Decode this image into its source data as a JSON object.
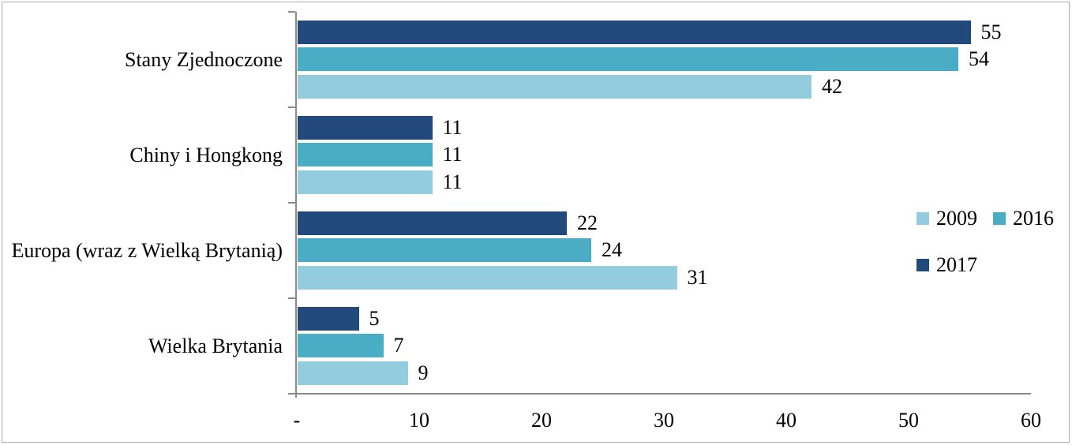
{
  "chart_data": {
    "type": "bar",
    "orientation": "horizontal",
    "title": "",
    "categories": [
      "Stany Zjednoczone",
      "Chiny i Hongkong",
      "Europa (wraz z Wielką Brytanią)",
      "Wielka Brytania"
    ],
    "series": [
      {
        "name": "2017",
        "color": "#21497B",
        "values": [
          55,
          11,
          22,
          5
        ]
      },
      {
        "name": "2016",
        "color": "#4BACC6",
        "values": [
          54,
          11,
          24,
          7
        ]
      },
      {
        "name": "2009",
        "color": "#93CDDD",
        "values": [
          42,
          11,
          31,
          9
        ]
      }
    ],
    "series_render_order": "top-to-bottom within each category group: 2017, 2016, 2009",
    "xlim": [
      0,
      60
    ],
    "x_ticks": [
      {
        "value": 0,
        "label": "-"
      },
      {
        "value": 10,
        "label": "10"
      },
      {
        "value": 20,
        "label": "20"
      },
      {
        "value": 30,
        "label": "30"
      },
      {
        "value": 40,
        "label": "40"
      },
      {
        "value": 50,
        "label": "50"
      },
      {
        "value": 60,
        "label": "60"
      }
    ],
    "data_labels": true,
    "grid": false,
    "legend_items": [
      {
        "label": "2009",
        "color": "#93CDDD"
      },
      {
        "label": "2016",
        "color": "#4BACC6"
      },
      {
        "label": "2017",
        "color": "#21497B"
      }
    ],
    "legend_rows": [
      [
        0,
        1
      ],
      [
        2
      ]
    ],
    "legend_position": "right-middle",
    "axis_color": "#8A8A8A",
    "text_color": "#000000",
    "background_color": "#FFFFFF",
    "border_color": "#ABABAB"
  }
}
